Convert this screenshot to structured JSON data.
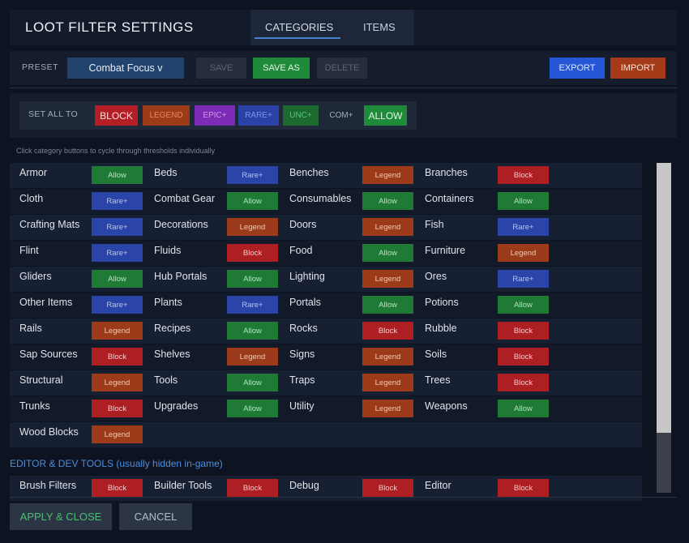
{
  "header": {
    "title": "LOOT FILTER SETTINGS",
    "tabs": [
      {
        "label": "CATEGORIES",
        "active": true
      },
      {
        "label": "ITEMS",
        "active": false
      }
    ]
  },
  "preset": {
    "label": "PRESET",
    "selected": "Combat Focus  v",
    "save": "SAVE",
    "save_as": "SAVE AS",
    "delete": "DELETE",
    "export": "EXPORT",
    "import": "IMPORT"
  },
  "set_all": {
    "label": "SET ALL TO",
    "buttons": [
      "BLOCK",
      "LEGEND",
      "EPIC+",
      "RARE+",
      "UNC+",
      "COM+",
      "ALLOW"
    ]
  },
  "hint": "Click category buttons to cycle through thresholds individually",
  "categories": [
    [
      {
        "name": "Armor",
        "value": "Allow"
      },
      {
        "name": "Beds",
        "value": "Rare+"
      },
      {
        "name": "Benches",
        "value": "Legend"
      },
      {
        "name": "Branches",
        "value": "Block"
      }
    ],
    [
      {
        "name": "Cloth",
        "value": "Rare+"
      },
      {
        "name": "Combat Gear",
        "value": "Allow"
      },
      {
        "name": "Consumables",
        "value": "Allow"
      },
      {
        "name": "Containers",
        "value": "Allow"
      }
    ],
    [
      {
        "name": "Crafting Mats",
        "value": "Rare+"
      },
      {
        "name": "Decorations",
        "value": "Legend"
      },
      {
        "name": "Doors",
        "value": "Legend"
      },
      {
        "name": "Fish",
        "value": "Rare+"
      }
    ],
    [
      {
        "name": "Flint",
        "value": "Rare+"
      },
      {
        "name": "Fluids",
        "value": "Block"
      },
      {
        "name": "Food",
        "value": "Allow"
      },
      {
        "name": "Furniture",
        "value": "Legend"
      }
    ],
    [
      {
        "name": "Gliders",
        "value": "Allow"
      },
      {
        "name": "Hub Portals",
        "value": "Allow"
      },
      {
        "name": "Lighting",
        "value": "Legend"
      },
      {
        "name": "Ores",
        "value": "Rare+"
      }
    ],
    [
      {
        "name": "Other Items",
        "value": "Rare+"
      },
      {
        "name": "Plants",
        "value": "Rare+"
      },
      {
        "name": "Portals",
        "value": "Allow"
      },
      {
        "name": "Potions",
        "value": "Allow"
      }
    ],
    [
      {
        "name": "Rails",
        "value": "Legend"
      },
      {
        "name": "Recipes",
        "value": "Allow"
      },
      {
        "name": "Rocks",
        "value": "Block"
      },
      {
        "name": "Rubble",
        "value": "Block"
      }
    ],
    [
      {
        "name": "Sap Sources",
        "value": "Block"
      },
      {
        "name": "Shelves",
        "value": "Legend"
      },
      {
        "name": "Signs",
        "value": "Legend"
      },
      {
        "name": "Soils",
        "value": "Block"
      }
    ],
    [
      {
        "name": "Structural",
        "value": "Legend"
      },
      {
        "name": "Tools",
        "value": "Allow"
      },
      {
        "name": "Traps",
        "value": "Legend"
      },
      {
        "name": "Trees",
        "value": "Block"
      }
    ],
    [
      {
        "name": "Trunks",
        "value": "Block"
      },
      {
        "name": "Upgrades",
        "value": "Allow"
      },
      {
        "name": "Utility",
        "value": "Legend"
      },
      {
        "name": "Weapons",
        "value": "Allow"
      }
    ],
    [
      {
        "name": "Wood Blocks",
        "value": "Legend"
      }
    ]
  ],
  "dev_section": {
    "title": "EDITOR & DEV TOOLS (usually hidden in-game)",
    "categories": [
      {
        "name": "Brush Filters",
        "value": "Block"
      },
      {
        "name": "Builder Tools",
        "value": "Block"
      },
      {
        "name": "Debug",
        "value": "Block"
      },
      {
        "name": "Editor",
        "value": "Block"
      }
    ]
  },
  "footer": {
    "apply": "APPLY & CLOSE",
    "cancel": "CANCEL"
  },
  "colors": {
    "allow": "#1f7a36",
    "rare": "#2a44a8",
    "legend": "#9b3b1a",
    "block": "#ad1f23",
    "accent": "#4a7fd0"
  }
}
